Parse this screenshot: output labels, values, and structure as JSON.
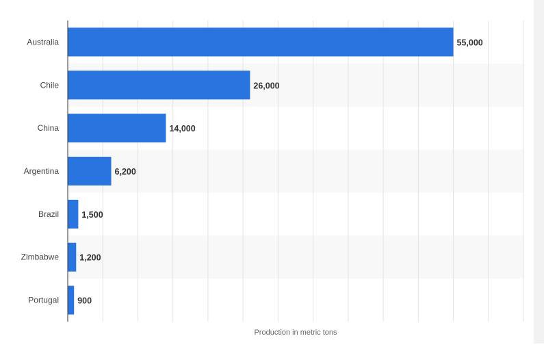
{
  "chart_data": {
    "type": "bar",
    "orientation": "horizontal",
    "categories": [
      "Australia",
      "Chile",
      "China",
      "Argentina",
      "Brazil",
      "Zimbabwe",
      "Portugal"
    ],
    "values": [
      55000,
      26000,
      14000,
      6200,
      1500,
      1200,
      900
    ],
    "value_labels": [
      "55,000",
      "26,000",
      "14,000",
      "6,200",
      "1,500",
      "1,200",
      "900"
    ],
    "title": "",
    "xlabel": "Production in metric tons",
    "ylabel": "",
    "xlim": [
      0,
      65000
    ],
    "grid": true,
    "legend": "none"
  },
  "colors": {
    "bar": "#2a74df",
    "grid": "#e3e3e3",
    "band": "#f8f8f8",
    "axis": "#333333"
  }
}
